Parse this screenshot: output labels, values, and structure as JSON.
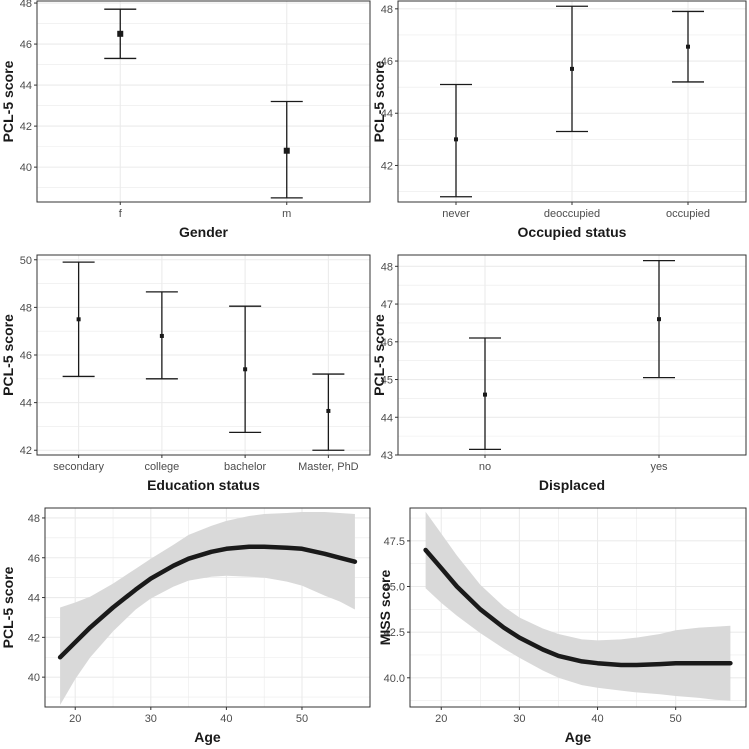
{
  "chart_data": [
    {
      "id": "gender",
      "type": "errorbar",
      "xlabel": "Gender",
      "ylabel": "PCL-5 score",
      "categories": [
        "f",
        "m"
      ],
      "points": [
        {
          "category": "f",
          "mean": 46.5,
          "lower": 45.3,
          "upper": 47.7
        },
        {
          "category": "m",
          "mean": 40.8,
          "lower": 38.5,
          "upper": 43.2
        }
      ],
      "ylim": [
        38.3,
        48.1
      ],
      "yticks": [
        40,
        42,
        44,
        46,
        48
      ],
      "ytick_labels": [
        "40",
        "42",
        "44",
        "46",
        "48"
      ]
    },
    {
      "id": "occupied",
      "type": "errorbar",
      "xlabel": "Occupied status",
      "ylabel": "PCL-5 score",
      "categories": [
        "never",
        "deoccupied",
        "occupied"
      ],
      "points": [
        {
          "category": "never",
          "mean": 43.0,
          "lower": 40.8,
          "upper": 45.1
        },
        {
          "category": "deoccupied",
          "mean": 45.7,
          "lower": 43.3,
          "upper": 48.1
        },
        {
          "category": "occupied",
          "mean": 46.55,
          "lower": 45.2,
          "upper": 47.9
        }
      ],
      "ylim": [
        40.6,
        48.3
      ],
      "yticks": [
        42,
        44,
        46,
        48
      ],
      "ytick_labels": [
        "42",
        "44",
        "46",
        "48"
      ]
    },
    {
      "id": "education",
      "type": "errorbar",
      "xlabel": "Education status",
      "ylabel": "PCL-5 score",
      "categories": [
        "secondary",
        "college",
        "bachelor",
        "Master, PhD"
      ],
      "points": [
        {
          "category": "secondary",
          "mean": 47.5,
          "lower": 45.1,
          "upper": 49.9
        },
        {
          "category": "college",
          "mean": 46.8,
          "lower": 45.0,
          "upper": 48.65
        },
        {
          "category": "bachelor",
          "mean": 45.4,
          "lower": 42.75,
          "upper": 48.05
        },
        {
          "category": "Master, PhD",
          "mean": 43.65,
          "lower": 42.0,
          "upper": 45.2
        }
      ],
      "ylim": [
        41.8,
        50.2
      ],
      "yticks": [
        42,
        44,
        46,
        48,
        50
      ],
      "ytick_labels": [
        "42",
        "44",
        "46",
        "48",
        "50"
      ]
    },
    {
      "id": "displaced",
      "type": "errorbar",
      "xlabel": "Displaced",
      "ylabel": "PCL-5 score",
      "categories": [
        "no",
        "yes"
      ],
      "points": [
        {
          "category": "no",
          "mean": 44.6,
          "lower": 43.15,
          "upper": 46.1
        },
        {
          "category": "yes",
          "mean": 46.6,
          "lower": 45.05,
          "upper": 48.15
        }
      ],
      "ylim": [
        43.0,
        48.3
      ],
      "yticks": [
        43,
        44,
        45,
        46,
        47,
        48
      ],
      "ytick_labels": [
        "43",
        "44",
        "45",
        "46",
        "47",
        "48"
      ]
    },
    {
      "id": "age-pcl",
      "type": "line",
      "xlabel": "Age",
      "ylabel": "PCL-5 score",
      "x": [
        18,
        20,
        22,
        25,
        28,
        30,
        33,
        35,
        38,
        40,
        43,
        45,
        48,
        50,
        53,
        55,
        57
      ],
      "y": [
        41.0,
        41.75,
        42.5,
        43.5,
        44.4,
        44.95,
        45.6,
        45.95,
        46.3,
        46.45,
        46.55,
        46.55,
        46.5,
        46.45,
        46.2,
        46.0,
        45.8
      ],
      "lower": [
        38.6,
        39.9,
        41.0,
        42.3,
        43.4,
        43.95,
        44.55,
        44.85,
        45.05,
        45.1,
        45.05,
        45.0,
        44.8,
        44.6,
        44.1,
        43.8,
        43.4
      ],
      "upper": [
        43.5,
        43.75,
        44.05,
        44.7,
        45.45,
        45.95,
        46.65,
        47.15,
        47.6,
        47.85,
        48.1,
        48.2,
        48.25,
        48.3,
        48.3,
        48.25,
        48.2
      ],
      "xlim": [
        16,
        59
      ],
      "ylim": [
        38.5,
        48.5
      ],
      "xticks": [
        20,
        30,
        40,
        50
      ],
      "xtick_labels": [
        "20",
        "30",
        "40",
        "50"
      ],
      "yticks": [
        40,
        42,
        44,
        46,
        48
      ],
      "ytick_labels": [
        "40",
        "42",
        "44",
        "46",
        "48"
      ]
    },
    {
      "id": "age-miss",
      "type": "line",
      "xlabel": "Age",
      "ylabel": "MISS score",
      "x": [
        18,
        20,
        22,
        25,
        28,
        30,
        33,
        35,
        38,
        40,
        43,
        45,
        48,
        50,
        53,
        55,
        57
      ],
      "y": [
        47.0,
        46.0,
        45.0,
        43.75,
        42.75,
        42.2,
        41.55,
        41.2,
        40.9,
        40.8,
        40.7,
        40.7,
        40.75,
        40.8,
        40.8,
        40.8,
        40.8
      ],
      "lower": [
        44.9,
        44.1,
        43.4,
        42.45,
        41.6,
        41.1,
        40.4,
        40.0,
        39.6,
        39.45,
        39.3,
        39.2,
        39.1,
        39.0,
        38.9,
        38.8,
        38.75
      ],
      "upper": [
        49.1,
        47.9,
        46.7,
        45.1,
        43.9,
        43.3,
        42.7,
        42.4,
        42.1,
        42.05,
        42.1,
        42.2,
        42.4,
        42.6,
        42.75,
        42.8,
        42.85
      ],
      "xlim": [
        16,
        59
      ],
      "ylim": [
        38.4,
        49.3
      ],
      "xticks": [
        20,
        30,
        40,
        50
      ],
      "xtick_labels": [
        "20",
        "30",
        "40",
        "50"
      ],
      "yticks": [
        40.0,
        42.5,
        45.0,
        47.5
      ],
      "ytick_labels": [
        "40.0",
        "42.5",
        "45.0",
        "47.5"
      ]
    }
  ],
  "colors": {
    "panel_border": "#333333",
    "grid": "#ebebeb",
    "mark": "#1a1a1a",
    "ribbon": "#d9d9d9",
    "tick_text": "#4d4d4d"
  }
}
